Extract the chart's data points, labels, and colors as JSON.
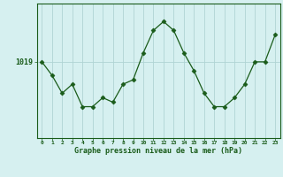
{
  "hours": [
    0,
    1,
    2,
    3,
    4,
    5,
    6,
    7,
    8,
    9,
    10,
    11,
    12,
    13,
    14,
    15,
    16,
    17,
    18,
    19,
    20,
    21,
    22,
    23
  ],
  "pressure": [
    1019,
    1017.5,
    1015.5,
    1016.5,
    1014,
    1014,
    1015,
    1014.5,
    1016.5,
    1017,
    1020,
    1022.5,
    1023.5,
    1022.5,
    1020,
    1018,
    1015.5,
    1014,
    1014,
    1015,
    1016.5,
    1019,
    1019,
    1022
  ],
  "ytick_value": 1019,
  "ytick_label": "1019",
  "line_color": "#1a5c1a",
  "marker": "D",
  "marker_size": 2.5,
  "bg_color": "#d6f0f0",
  "grid_color": "#b0d4d4",
  "xlabel": "Graphe pression niveau de la mer (hPa)",
  "xlabel_color": "#1a5c1a",
  "tick_color": "#1a5c1a",
  "figsize": [
    3.2,
    2.0
  ],
  "dpi": 100,
  "ylim": [
    1010.5,
    1025.5
  ],
  "xlim": [
    -0.5,
    23.5
  ]
}
